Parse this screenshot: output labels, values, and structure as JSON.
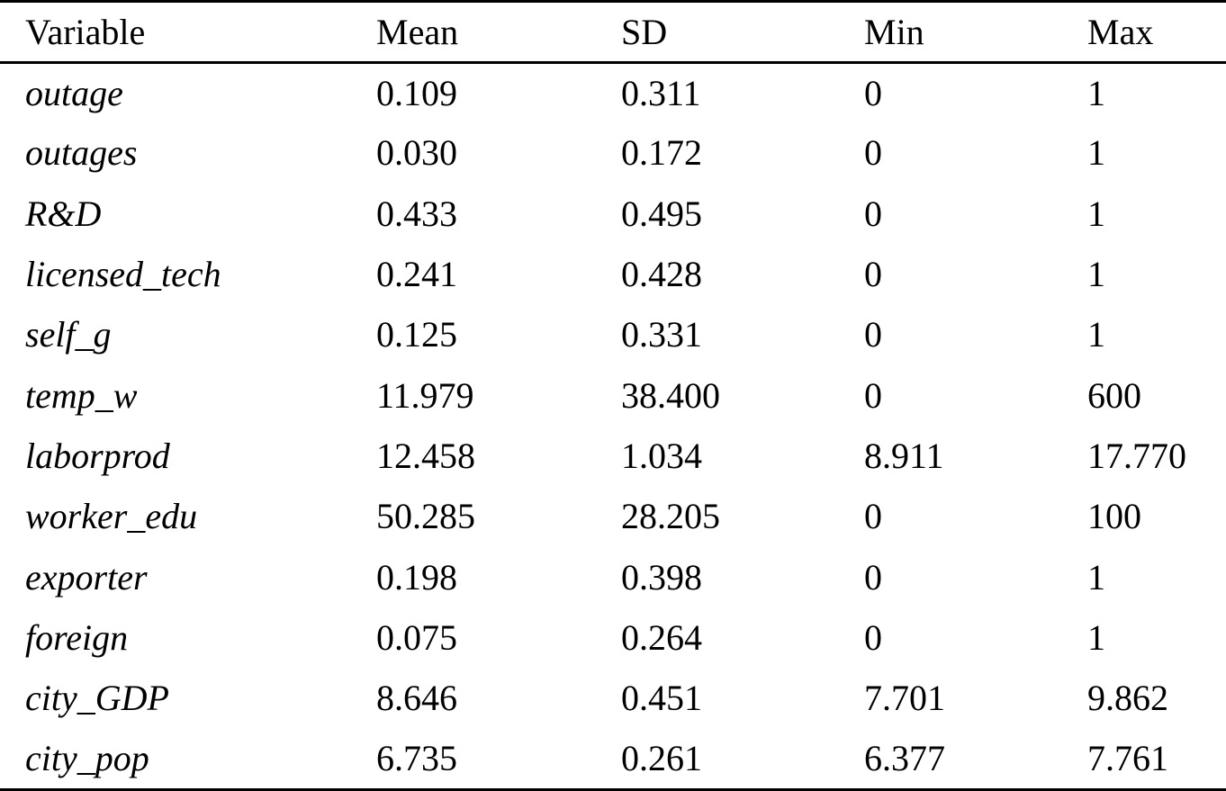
{
  "table": {
    "headers": [
      "Variable",
      "Mean",
      "SD",
      "Min",
      "Max"
    ],
    "rows": [
      [
        "outage",
        "0.109",
        "0.311",
        "0",
        "1"
      ],
      [
        "outages",
        "0.030",
        "0.172",
        "0",
        "1"
      ],
      [
        "R&D",
        "0.433",
        "0.495",
        "0",
        "1"
      ],
      [
        "licensed_tech",
        "0.241",
        "0.428",
        "0",
        "1"
      ],
      [
        "self_g",
        "0.125",
        "0.331",
        "0",
        "1"
      ],
      [
        "temp_w",
        "11.979",
        "38.400",
        "0",
        "600"
      ],
      [
        "laborprod",
        "12.458",
        "1.034",
        "8.911",
        "17.770"
      ],
      [
        "worker_edu",
        "50.285",
        "28.205",
        "0",
        "100"
      ],
      [
        "exporter",
        "0.198",
        "0.398",
        "0",
        "1"
      ],
      [
        "foreign",
        "0.075",
        "0.264",
        "0",
        "1"
      ],
      [
        "city_GDP",
        "8.646",
        "0.451",
        "7.701",
        "9.862"
      ],
      [
        "city_pop",
        "6.735",
        "0.261",
        "6.377",
        "7.761"
      ]
    ]
  }
}
